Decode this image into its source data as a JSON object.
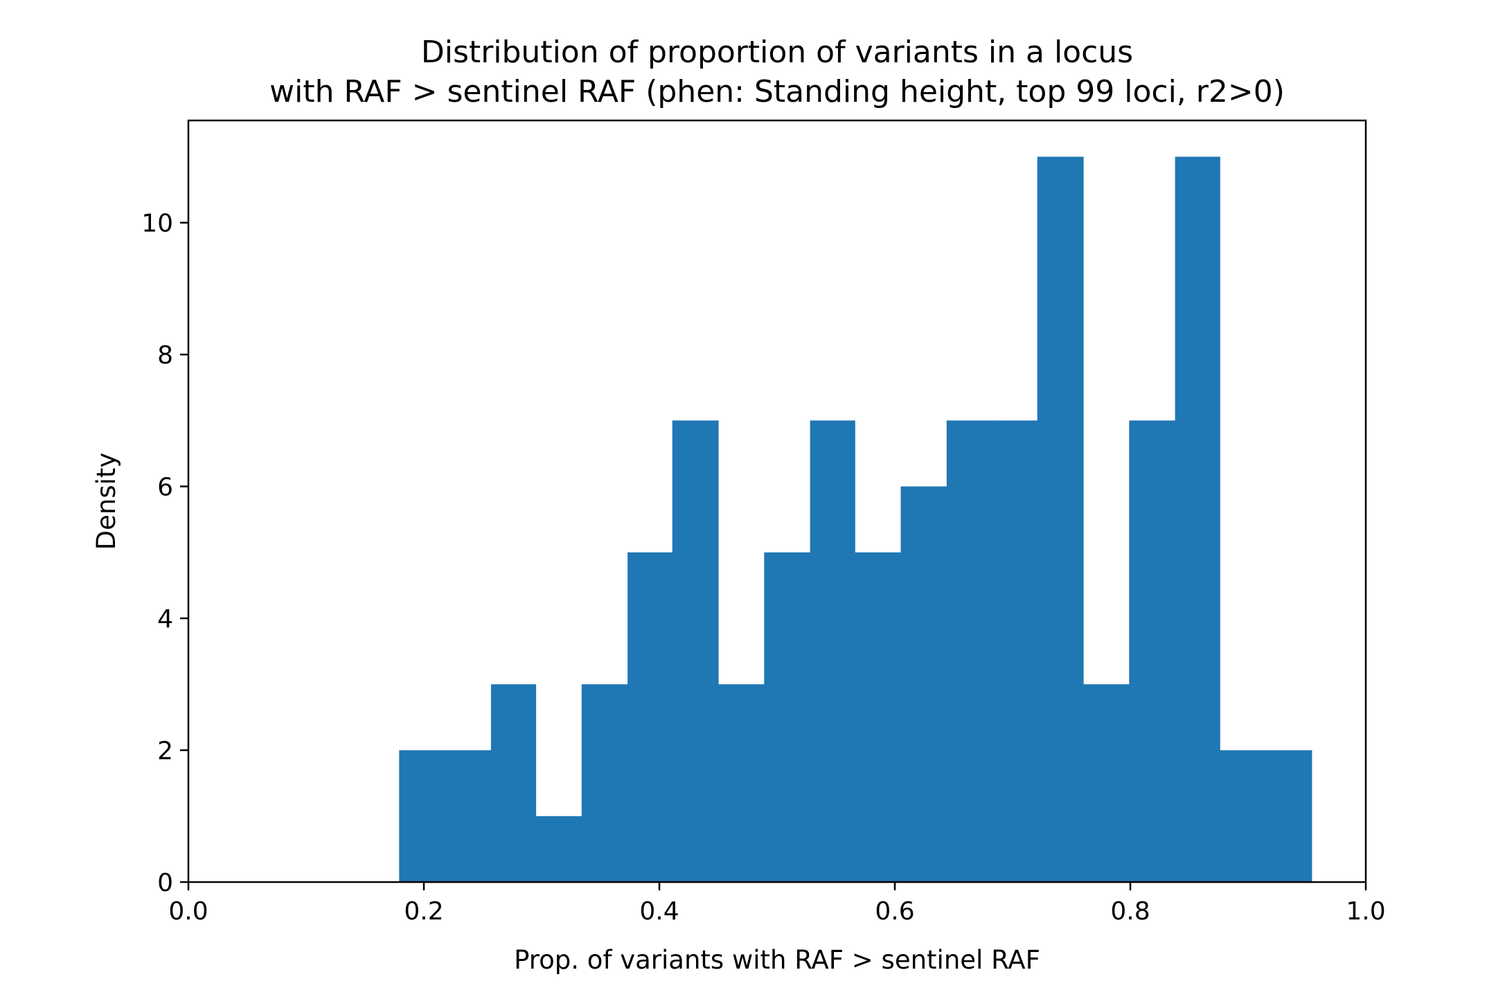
{
  "chart_data": {
    "type": "bar",
    "title": "Distribution of proportion of variants in a locus",
    "subtitle": "with RAF > sentinel RAF (phen: Standing height, top 99 loci, r2>0)",
    "xlabel": "Prop. of variants with RAF > sentinel RAF",
    "ylabel": "Density",
    "xlim": [
      0.0,
      1.0
    ],
    "ylim": [
      0,
      11.55
    ],
    "xticks": [
      "0.0",
      "0.2",
      "0.4",
      "0.6",
      "0.8",
      "1.0"
    ],
    "yticks": [
      "0",
      "2",
      "4",
      "6",
      "8",
      "10"
    ],
    "bin_edges": [
      0.179,
      0.218,
      0.257,
      0.295,
      0.334,
      0.373,
      0.411,
      0.45,
      0.489,
      0.528,
      0.566,
      0.605,
      0.644,
      0.683,
      0.721,
      0.76,
      0.799,
      0.838,
      0.876,
      0.915,
      0.954
    ],
    "values": [
      2,
      2,
      3,
      1,
      3,
      5,
      7,
      3,
      5,
      7,
      5,
      6,
      7,
      7,
      11,
      3,
      7,
      11,
      2,
      2
    ],
    "bar_color": "#1f77b4",
    "grid": false
  }
}
